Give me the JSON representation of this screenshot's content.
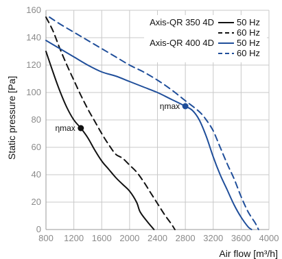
{
  "chart_data": {
    "type": "line",
    "xlabel": "Air flow [m³/h]",
    "ylabel": "Static pressure [Pa]",
    "xlim": [
      800,
      4000
    ],
    "ylim": [
      0,
      160
    ],
    "xticks": [
      800,
      1200,
      1600,
      2000,
      2400,
      2800,
      3200,
      3600,
      4000
    ],
    "yticks": [
      0,
      20,
      40,
      60,
      80,
      100,
      120,
      140,
      160
    ],
    "grid": true,
    "legend": {
      "placement": "top-right",
      "groups": [
        {
          "name": "Axis-QR 350 4D",
          "entries": [
            "50 Hz",
            "60 Hz"
          ]
        },
        {
          "name": "Axis-QR 400 4D",
          "entries": [
            "50 Hz",
            "60 Hz"
          ]
        }
      ]
    },
    "series": [
      {
        "name": "Axis-QR 350 4D 50 Hz",
        "color": "#111111",
        "dashed": false,
        "points": [
          [
            800,
            130
          ],
          [
            900,
            115
          ],
          [
            1000,
            101
          ],
          [
            1100,
            89
          ],
          [
            1200,
            80
          ],
          [
            1300,
            74
          ],
          [
            1400,
            67
          ],
          [
            1500,
            58
          ],
          [
            1600,
            50
          ],
          [
            1700,
            44
          ],
          [
            1800,
            38
          ],
          [
            1900,
            33
          ],
          [
            2000,
            28
          ],
          [
            2100,
            20
          ],
          [
            2150,
            13
          ],
          [
            2250,
            6
          ],
          [
            2350,
            0
          ]
        ]
      },
      {
        "name": "Axis-QR 350 4D 60 Hz",
        "color": "#111111",
        "dashed": true,
        "points": [
          [
            800,
            155
          ],
          [
            900,
            145
          ],
          [
            1000,
            132
          ],
          [
            1100,
            120
          ],
          [
            1200,
            109
          ],
          [
            1300,
            98
          ],
          [
            1400,
            88
          ],
          [
            1500,
            79
          ],
          [
            1600,
            70
          ],
          [
            1700,
            62
          ],
          [
            1800,
            55
          ],
          [
            1900,
            52
          ],
          [
            2000,
            47
          ],
          [
            2100,
            42
          ],
          [
            2200,
            35
          ],
          [
            2300,
            27
          ],
          [
            2400,
            19
          ],
          [
            2500,
            11
          ],
          [
            2600,
            4
          ],
          [
            2650,
            0
          ]
        ]
      },
      {
        "name": "Axis-QR 400 4D 50 Hz",
        "color": "#1f4e9a",
        "dashed": false,
        "points": [
          [
            800,
            138
          ],
          [
            1000,
            132
          ],
          [
            1200,
            126
          ],
          [
            1400,
            120
          ],
          [
            1600,
            115
          ],
          [
            1800,
            112
          ],
          [
            2000,
            108
          ],
          [
            2200,
            104
          ],
          [
            2400,
            100
          ],
          [
            2600,
            95
          ],
          [
            2800,
            90
          ],
          [
            2900,
            87
          ],
          [
            3000,
            80
          ],
          [
            3100,
            68
          ],
          [
            3200,
            53
          ],
          [
            3300,
            40
          ],
          [
            3400,
            29
          ],
          [
            3500,
            18
          ],
          [
            3600,
            9
          ],
          [
            3700,
            2
          ],
          [
            3750,
            0
          ]
        ]
      },
      {
        "name": "Axis-QR 400 4D 60 Hz",
        "color": "#1f4e9a",
        "dashed": true,
        "points": [
          [
            850,
            155
          ],
          [
            1000,
            150
          ],
          [
            1200,
            144
          ],
          [
            1400,
            138
          ],
          [
            1600,
            132
          ],
          [
            1800,
            126
          ],
          [
            2000,
            120
          ],
          [
            2200,
            115
          ],
          [
            2400,
            109
          ],
          [
            2600,
            102
          ],
          [
            2800,
            94
          ],
          [
            3000,
            86
          ],
          [
            3100,
            80
          ],
          [
            3200,
            72
          ],
          [
            3300,
            60
          ],
          [
            3400,
            48
          ],
          [
            3500,
            37
          ],
          [
            3600,
            24
          ],
          [
            3700,
            13
          ],
          [
            3800,
            5
          ],
          [
            3850,
            0
          ]
        ]
      }
    ],
    "annotations": [
      {
        "label": "ηmax",
        "x": 1300,
        "y": 74,
        "color": "#111111",
        "text_side": "left"
      },
      {
        "label": "ηmax",
        "x": 2800,
        "y": 90,
        "color": "#1f4e9a",
        "text_side": "left"
      }
    ]
  }
}
